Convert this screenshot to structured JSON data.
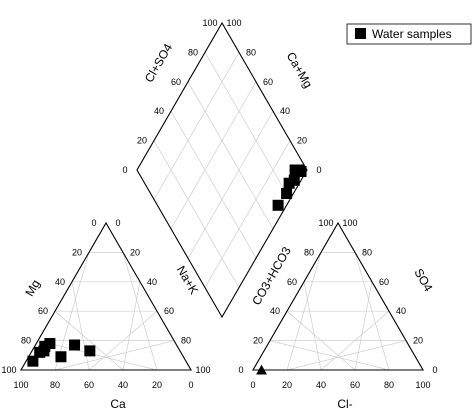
{
  "chart_data": {
    "type": "scatter",
    "chart_kind": "Piper trilinear diagram",
    "legend": {
      "label": "Water samples",
      "marker": "square",
      "placement": "top-right"
    },
    "marker_color": "#000000",
    "grid": true,
    "axes": {
      "cation_triangle": {
        "ca": "Ca",
        "mg": "Mg",
        "nak": "Na+K",
        "ticks": [
          "0",
          "20",
          "40",
          "60",
          "80",
          "100"
        ]
      },
      "anion_triangle": {
        "cl": "Cl-",
        "so4": "SO4",
        "co3": "CO3+HCO3",
        "ticks": [
          "0",
          "20",
          "40",
          "60",
          "80",
          "100"
        ]
      },
      "diamond": {
        "clso4": "Cl+SO4",
        "camg": "Ca+Mg",
        "ticks": [
          "0",
          "20",
          "40",
          "60",
          "80",
          "100"
        ]
      }
    },
    "cation_points": [
      {
        "ca": 90,
        "mg": 6,
        "nak": 4
      },
      {
        "ca": 83,
        "mg": 12,
        "nak": 5
      },
      {
        "ca": 80,
        "mg": 13,
        "nak": 7
      },
      {
        "ca": 78,
        "mg": 16,
        "nak": 6
      },
      {
        "ca": 74,
        "mg": 18,
        "nak": 8
      },
      {
        "ca": 72,
        "mg": 9,
        "nak": 19
      },
      {
        "ca": 60,
        "mg": 17,
        "nak": 23
      },
      {
        "ca": 53,
        "mg": 13,
        "nak": 34
      }
    ],
    "anion_points": [
      {
        "cl": 5,
        "so4": 0,
        "co3": 95
      }
    ],
    "diamond_points": [
      {
        "clso4": 3,
        "camg": 96
      },
      {
        "clso4": 5,
        "camg": 95
      },
      {
        "clso4": 7,
        "camg": 93
      },
      {
        "clso4": 4,
        "camg": 89
      },
      {
        "clso4": 6,
        "camg": 85
      },
      {
        "clso4": 4,
        "camg": 80
      },
      {
        "clso4": 5,
        "camg": 71
      }
    ]
  }
}
